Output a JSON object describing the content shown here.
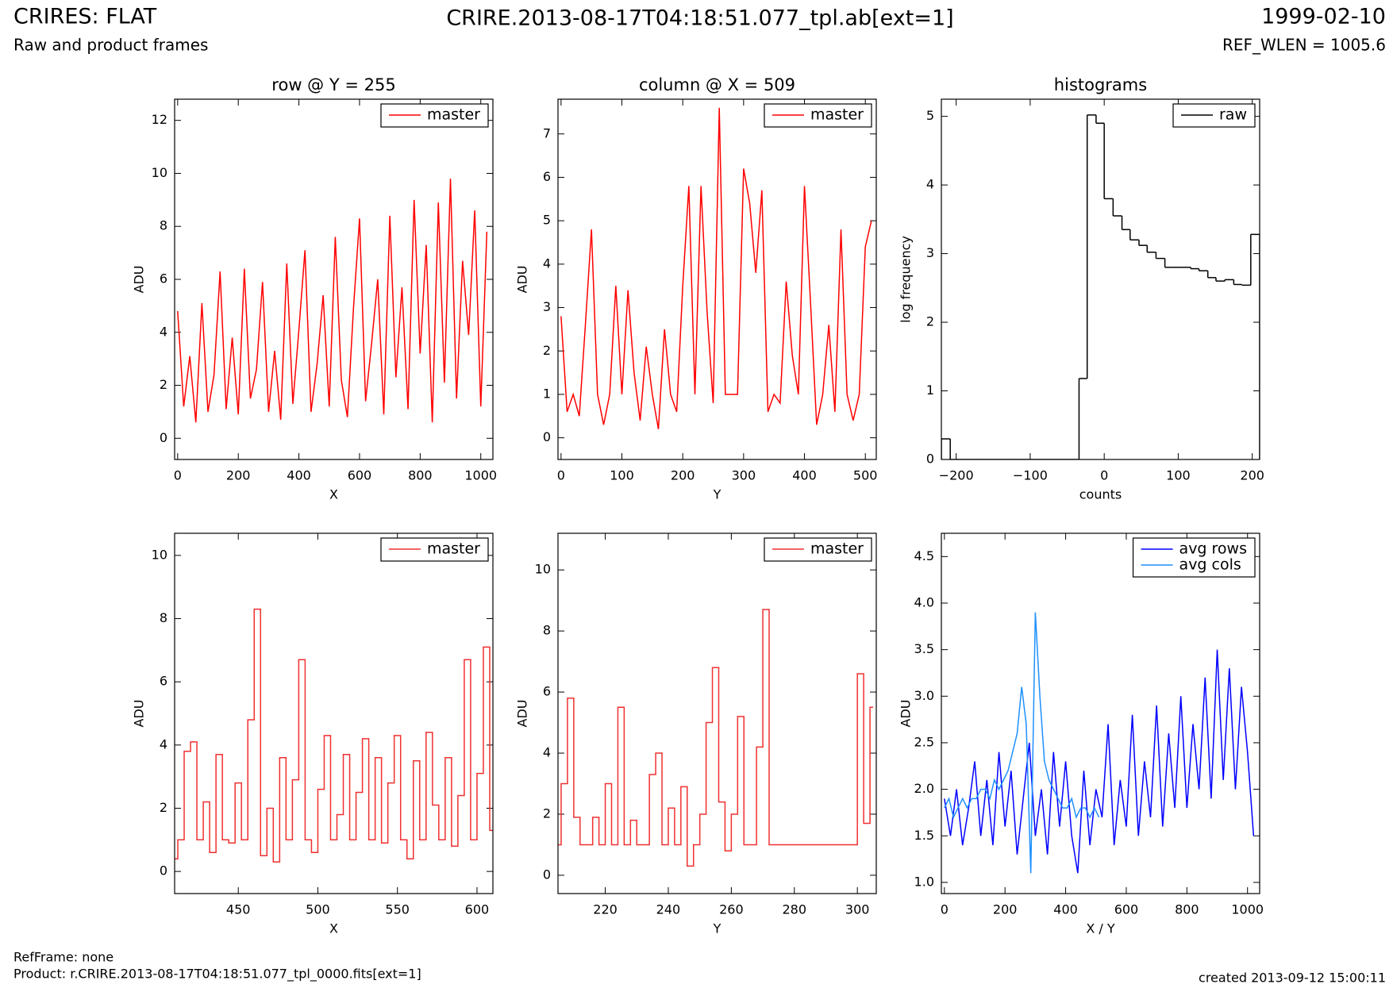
{
  "header": {
    "title": "CRIRES: FLAT",
    "subtitle": "Raw and product frames",
    "file": "CRIRE.2013-08-17T04:18:51.077_tpl.ab[ext=1]",
    "date": "1999-02-10",
    "ref": "REF_WLEN = 1005.6"
  },
  "footer": {
    "refframe": "RefFrame: none",
    "product": "Product: r.CRIRE.2013-08-17T04:18:51.077_tpl_0000.fits[ext=1]",
    "created": "created 2013-09-12 15:00:11"
  },
  "chart_data": [
    {
      "type": "line",
      "title": "row @ Y = 255",
      "xlabel": "X",
      "ylabel": "ADU",
      "x": [
        0,
        20,
        40,
        60,
        80,
        100,
        120,
        140,
        160,
        180,
        200,
        220,
        240,
        260,
        280,
        300,
        320,
        340,
        360,
        380,
        400,
        420,
        440,
        460,
        480,
        500,
        520,
        540,
        560,
        580,
        600,
        620,
        640,
        660,
        680,
        700,
        720,
        740,
        760,
        780,
        800,
        820,
        840,
        860,
        880,
        900,
        920,
        940,
        960,
        980,
        1000,
        1020
      ],
      "series": [
        {
          "name": "master",
          "color": "#ff0000",
          "values": [
            4.8,
            1.2,
            3.1,
            0.6,
            5.1,
            1.0,
            2.4,
            6.3,
            1.1,
            3.8,
            0.9,
            6.4,
            1.5,
            2.6,
            5.9,
            1.0,
            3.3,
            0.7,
            6.6,
            1.3,
            4.1,
            7.1,
            1.0,
            2.8,
            5.4,
            1.2,
            7.6,
            2.2,
            0.8,
            4.9,
            8.3,
            1.4,
            3.6,
            6.0,
            0.9,
            8.4,
            2.3,
            5.7,
            1.1,
            9.0,
            3.2,
            7.3,
            0.6,
            8.9,
            2.1,
            9.8,
            1.5,
            6.7,
            3.9,
            8.6,
            1.2,
            7.8
          ]
        }
      ],
      "xlim": [
        -10,
        1040
      ],
      "ylim": [
        -0.8,
        12.8
      ],
      "xticks": [
        0,
        200,
        400,
        600,
        800,
        1000
      ],
      "yticks": [
        0,
        2,
        4,
        6,
        8,
        10,
        12
      ],
      "legend": "upper right"
    },
    {
      "type": "line",
      "title": "column @ X = 509",
      "xlabel": "Y",
      "ylabel": "ADU",
      "x": [
        0,
        10,
        20,
        30,
        40,
        50,
        60,
        70,
        80,
        90,
        100,
        110,
        120,
        130,
        140,
        150,
        160,
        170,
        180,
        190,
        200,
        210,
        220,
        230,
        240,
        250,
        260,
        270,
        280,
        290,
        300,
        310,
        320,
        330,
        340,
        350,
        360,
        370,
        380,
        390,
        400,
        410,
        420,
        430,
        440,
        450,
        460,
        470,
        480,
        490,
        500,
        510
      ],
      "series": [
        {
          "name": "master",
          "color": "#ff0000",
          "values": [
            2.8,
            0.6,
            1.0,
            0.5,
            2.6,
            4.8,
            1.0,
            0.3,
            1.0,
            3.5,
            1.0,
            3.4,
            1.5,
            0.4,
            2.1,
            1.0,
            0.2,
            2.5,
            1.0,
            0.6,
            3.5,
            5.8,
            1.0,
            5.8,
            2.9,
            0.8,
            7.6,
            1.0,
            1.0,
            1.0,
            6.2,
            5.4,
            3.8,
            5.7,
            0.6,
            1.0,
            0.8,
            3.6,
            1.9,
            1.0,
            5.8,
            3.1,
            0.3,
            1.0,
            2.6,
            0.6,
            4.8,
            1.0,
            0.4,
            1.0,
            4.4,
            5.0
          ]
        }
      ],
      "xlim": [
        -5,
        518
      ],
      "ylim": [
        -0.5,
        7.8
      ],
      "xticks": [
        0,
        100,
        200,
        300,
        400,
        500
      ],
      "yticks": [
        0,
        1,
        2,
        3,
        4,
        5,
        6,
        7
      ],
      "legend": "upper right"
    },
    {
      "type": "histogram",
      "title": "histograms",
      "xlabel": "counts",
      "ylabel": "log frequency",
      "bins": [
        -220,
        -208,
        -197,
        -185,
        -174,
        -162,
        -150,
        -139,
        -127,
        -115,
        -104,
        -92,
        -81,
        -69,
        -57,
        -46,
        -34,
        -23,
        -11,
        0,
        12,
        24,
        35,
        47,
        58,
        70,
        82,
        93,
        105,
        117,
        128,
        140,
        151,
        163,
        175,
        186,
        198,
        210
      ],
      "series": [
        {
          "name": "raw",
          "color": "#000000",
          "values": [
            0.3,
            0,
            0,
            0,
            0,
            0,
            0,
            0,
            0,
            0,
            0,
            0,
            0,
            0,
            0,
            0,
            1.18,
            5.02,
            4.9,
            3.8,
            3.55,
            3.35,
            3.2,
            3.12,
            3.02,
            2.93,
            2.8,
            2.8,
            2.8,
            2.78,
            2.75,
            2.65,
            2.6,
            2.62,
            2.55,
            2.54,
            3.28
          ]
        }
      ],
      "xlim": [
        -220,
        210
      ],
      "ylim": [
        0,
        5.25
      ],
      "xticks": [
        {
          "value": -200,
          "label": "−200"
        },
        {
          "value": -100,
          "label": "−100"
        },
        0,
        100,
        200
      ],
      "yticks": [
        0,
        1,
        2,
        3,
        4,
        5
      ],
      "legend": "upper right"
    },
    {
      "type": "line",
      "xlabel": "X",
      "ylabel": "ADU",
      "drawstyle": "steps-mid",
      "x": [
        410,
        414,
        418,
        422,
        426,
        430,
        434,
        438,
        442,
        446,
        450,
        454,
        458,
        462,
        466,
        470,
        474,
        478,
        482,
        486,
        490,
        494,
        498,
        502,
        506,
        510,
        514,
        518,
        522,
        526,
        530,
        534,
        538,
        542,
        546,
        550,
        554,
        558,
        562,
        566,
        570,
        574,
        578,
        582,
        586,
        590,
        594,
        598,
        602,
        606,
        610
      ],
      "series": [
        {
          "name": "master",
          "color": "#f03030",
          "values": [
            0.4,
            1.0,
            3.8,
            4.1,
            1.0,
            2.2,
            0.6,
            3.7,
            1.0,
            0.9,
            2.8,
            1.0,
            4.8,
            8.3,
            0.5,
            2.0,
            0.3,
            3.6,
            1.0,
            2.9,
            6.7,
            1.0,
            0.6,
            2.6,
            4.3,
            1.0,
            1.8,
            3.7,
            1.0,
            2.5,
            4.2,
            1.0,
            3.6,
            0.9,
            2.8,
            4.3,
            1.0,
            0.4,
            3.5,
            1.0,
            4.4,
            2.1,
            1.0,
            3.6,
            0.8,
            2.4,
            6.7,
            1.0,
            3.1,
            7.1,
            1.3
          ]
        }
      ],
      "xlim": [
        410,
        610
      ],
      "ylim": [
        -0.7,
        10.7
      ],
      "xticks": [
        450,
        500,
        550,
        600
      ],
      "yticks": [
        0,
        2,
        4,
        6,
        8,
        10
      ],
      "legend": "upper right"
    },
    {
      "type": "line",
      "xlabel": "Y",
      "ylabel": "ADU",
      "drawstyle": "steps-mid",
      "x": [
        205,
        207,
        209,
        211,
        213,
        215,
        217,
        219,
        221,
        223,
        225,
        227,
        229,
        231,
        233,
        235,
        237,
        239,
        241,
        243,
        245,
        247,
        249,
        251,
        253,
        255,
        257,
        259,
        261,
        263,
        265,
        267,
        269,
        271,
        273,
        275,
        277,
        279,
        281,
        283,
        285,
        287,
        289,
        291,
        293,
        295,
        297,
        299,
        301,
        303,
        305
      ],
      "series": [
        {
          "name": "master",
          "color": "#f03030",
          "values": [
            1.0,
            3.0,
            5.8,
            1.9,
            1.0,
            1.0,
            1.9,
            1.0,
            3.0,
            1.0,
            5.5,
            1.0,
            1.8,
            1.0,
            1.0,
            3.3,
            4.0,
            1.0,
            2.2,
            1.0,
            2.9,
            0.3,
            1.0,
            2.0,
            5.0,
            6.8,
            2.4,
            0.8,
            2.0,
            5.2,
            1.0,
            1.0,
            4.2,
            8.7,
            1.0,
            1.0,
            1.0,
            1.0,
            1.0,
            1.0,
            1.0,
            1.0,
            1.0,
            1.0,
            1.0,
            1.0,
            1.0,
            1.0,
            6.6,
            1.7,
            5.5
          ]
        }
      ],
      "xlim": [
        205,
        306
      ],
      "ylim": [
        -0.6,
        11.2
      ],
      "xticks": [
        220,
        240,
        260,
        280,
        300
      ],
      "yticks": [
        0,
        2,
        4,
        6,
        8,
        10
      ],
      "legend": "upper right"
    },
    {
      "type": "line",
      "xlabel": "X / Y",
      "ylabel": "ADU",
      "series": [
        {
          "name": "avg rows",
          "color": "#0000ff",
          "x": [
            0,
            20,
            40,
            60,
            80,
            100,
            120,
            140,
            160,
            180,
            200,
            220,
            240,
            260,
            280,
            300,
            320,
            340,
            360,
            380,
            400,
            420,
            440,
            460,
            480,
            500,
            520,
            540,
            560,
            580,
            600,
            620,
            640,
            660,
            680,
            700,
            720,
            740,
            760,
            780,
            800,
            820,
            840,
            860,
            880,
            900,
            920,
            940,
            960,
            980,
            1000,
            1020
          ],
          "values": [
            1.9,
            1.5,
            2.0,
            1.4,
            1.8,
            2.3,
            1.5,
            2.1,
            1.4,
            2.4,
            1.6,
            2.2,
            1.3,
            1.9,
            2.5,
            1.5,
            2.0,
            1.3,
            2.4,
            1.6,
            2.3,
            1.5,
            1.1,
            2.2,
            1.4,
            2.0,
            1.7,
            2.7,
            1.4,
            2.1,
            1.6,
            2.8,
            1.5,
            2.3,
            1.7,
            2.9,
            1.6,
            2.6,
            1.8,
            3.0,
            1.8,
            2.7,
            2.0,
            3.2,
            1.9,
            3.5,
            2.1,
            3.3,
            2.0,
            3.1,
            2.4,
            1.5
          ]
        },
        {
          "name": "avg cols",
          "color": "#1e90ff",
          "x": [
            0,
            15,
            30,
            45,
            60,
            75,
            90,
            105,
            120,
            135,
            150,
            165,
            180,
            195,
            210,
            225,
            240,
            255,
            270,
            285,
            300,
            315,
            330,
            345,
            360,
            375,
            390,
            405,
            420,
            435,
            450,
            465,
            480,
            495,
            510
          ],
          "values": [
            1.8,
            1.9,
            1.7,
            1.8,
            1.9,
            1.8,
            1.9,
            1.9,
            2.0,
            2.0,
            1.9,
            2.1,
            2.0,
            2.1,
            2.2,
            2.4,
            2.6,
            3.1,
            2.7,
            1.1,
            3.9,
            3.0,
            2.3,
            2.1,
            2.0,
            1.9,
            1.8,
            1.8,
            1.9,
            1.7,
            1.8,
            1.8,
            1.7,
            1.8,
            1.7
          ]
        }
      ],
      "xlim": [
        -10,
        1040
      ],
      "ylim": [
        0.88,
        4.75
      ],
      "xticks": [
        0,
        200,
        400,
        600,
        800,
        1000
      ],
      "yticks": [
        {
          "value": 1,
          "label": "1.0"
        },
        1.5,
        {
          "value": 2,
          "label": "2.0"
        },
        2.5,
        {
          "value": 3,
          "label": "3.0"
        },
        3.5,
        {
          "value": 4,
          "label": "4.0"
        },
        4.5
      ],
      "legend": "upper right"
    }
  ]
}
